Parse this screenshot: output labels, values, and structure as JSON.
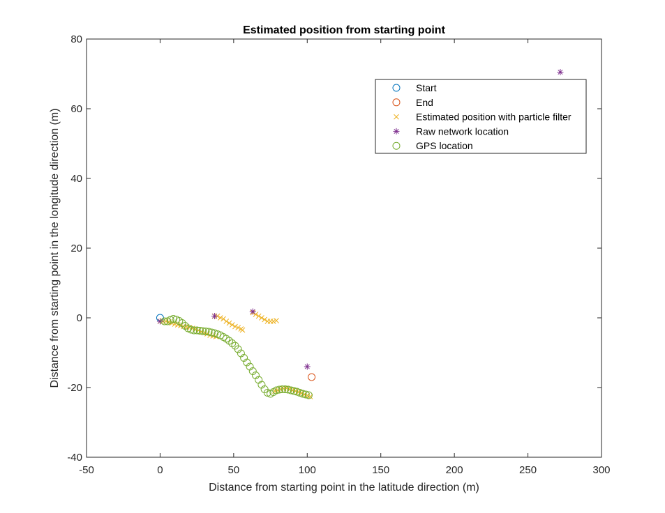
{
  "chart_data": {
    "type": "scatter",
    "title": "Estimated position from starting point",
    "xlabel": "Distance from starting point in the latitude direction (m)",
    "ylabel": "Distance from starting point in the longitude direction (m)",
    "xlim": [
      -50,
      300
    ],
    "ylim": [
      -40,
      80
    ],
    "xticks": [
      -50,
      0,
      50,
      100,
      150,
      200,
      250,
      300
    ],
    "yticks": [
      -40,
      -20,
      0,
      20,
      40,
      60,
      80
    ],
    "grid": false,
    "legend_position": "top-right",
    "series": [
      {
        "name": "Start",
        "marker": "circle",
        "color": "#0072BD",
        "points": [
          [
            0,
            0
          ]
        ]
      },
      {
        "name": "End",
        "marker": "circle",
        "color": "#D95319",
        "points": [
          [
            103,
            -17
          ]
        ]
      },
      {
        "name": "Estimated position with particle filter",
        "marker": "x",
        "color": "#EDB120",
        "points": [
          [
            0,
            -1
          ],
          [
            2,
            -1
          ],
          [
            4,
            -1
          ],
          [
            6,
            -1.2
          ],
          [
            8,
            -1.5
          ],
          [
            10,
            -1.8
          ],
          [
            12,
            -2
          ],
          [
            14,
            -2.2
          ],
          [
            16,
            -2.5
          ],
          [
            18,
            -2.6
          ],
          [
            20,
            -2.8
          ],
          [
            22,
            -3
          ],
          [
            24,
            -3.3
          ],
          [
            26,
            -3.6
          ],
          [
            28,
            -4
          ],
          [
            30,
            -4.3
          ],
          [
            32,
            -4.6
          ],
          [
            34,
            -5
          ],
          [
            36,
            -5.2
          ],
          [
            38,
            -5.4
          ],
          [
            37,
            0.5
          ],
          [
            39,
            0.5
          ],
          [
            41,
            0
          ],
          [
            43,
            -0.3
          ],
          [
            45,
            -1
          ],
          [
            47,
            -1.5
          ],
          [
            49,
            -2
          ],
          [
            51,
            -2.5
          ],
          [
            53,
            -2.8
          ],
          [
            55,
            -3.2
          ],
          [
            56,
            -3.5
          ],
          [
            63,
            1.5
          ],
          [
            65,
            1
          ],
          [
            67,
            0.5
          ],
          [
            69,
            0
          ],
          [
            71,
            -0.5
          ],
          [
            73,
            -1
          ],
          [
            75,
            -1
          ],
          [
            77,
            -1
          ],
          [
            79,
            -0.8
          ],
          [
            78,
            -21
          ],
          [
            80,
            -20.8
          ],
          [
            82,
            -20.5
          ],
          [
            84,
            -20.3
          ],
          [
            86,
            -20.2
          ],
          [
            88,
            -20.5
          ],
          [
            90,
            -20.8
          ],
          [
            92,
            -21
          ],
          [
            94,
            -21.3
          ],
          [
            96,
            -21.6
          ],
          [
            98,
            -22
          ],
          [
            100,
            -22.3
          ],
          [
            102,
            -22.6
          ]
        ]
      },
      {
        "name": "Raw network location",
        "marker": "asterisk",
        "color": "#7E2F8E",
        "points": [
          [
            0,
            -1
          ],
          [
            37,
            0.5
          ],
          [
            63,
            1.8
          ],
          [
            100,
            -14
          ],
          [
            272,
            70.5
          ]
        ]
      },
      {
        "name": "GPS location",
        "marker": "circle",
        "color": "#77AC30",
        "points": [
          [
            3,
            -1
          ],
          [
            5,
            -1
          ],
          [
            7,
            -0.6
          ],
          [
            9,
            -0.3
          ],
          [
            11,
            -0.5
          ],
          [
            13,
            -0.9
          ],
          [
            15,
            -1.5
          ],
          [
            17,
            -2.3
          ],
          [
            19,
            -3
          ],
          [
            21,
            -3.4
          ],
          [
            23,
            -3.6
          ],
          [
            25,
            -3.6
          ],
          [
            27,
            -3.7
          ],
          [
            29,
            -3.8
          ],
          [
            31,
            -3.9
          ],
          [
            33,
            -4
          ],
          [
            35,
            -4.2
          ],
          [
            37,
            -4.4
          ],
          [
            39,
            -4.7
          ],
          [
            41,
            -5
          ],
          [
            43,
            -5.5
          ],
          [
            45,
            -6
          ],
          [
            47,
            -6.6
          ],
          [
            49,
            -7.3
          ],
          [
            51,
            -8
          ],
          [
            53,
            -9
          ],
          [
            55,
            -10.2
          ],
          [
            57,
            -11.5
          ],
          [
            59,
            -12.8
          ],
          [
            61,
            -14
          ],
          [
            63,
            -15.3
          ],
          [
            65,
            -16.5
          ],
          [
            67,
            -17.8
          ],
          [
            69,
            -19.2
          ],
          [
            71,
            -20.5
          ],
          [
            73,
            -21.5
          ],
          [
            75,
            -21.8
          ],
          [
            77,
            -21.3
          ],
          [
            79,
            -20.8
          ],
          [
            81,
            -20.6
          ],
          [
            83,
            -20.5
          ],
          [
            85,
            -20.5
          ],
          [
            87,
            -20.6
          ],
          [
            89,
            -20.8
          ],
          [
            91,
            -21
          ],
          [
            93,
            -21.2
          ],
          [
            95,
            -21.5
          ],
          [
            97,
            -21.8
          ],
          [
            99,
            -22
          ],
          [
            101,
            -22.2
          ]
        ]
      }
    ]
  }
}
